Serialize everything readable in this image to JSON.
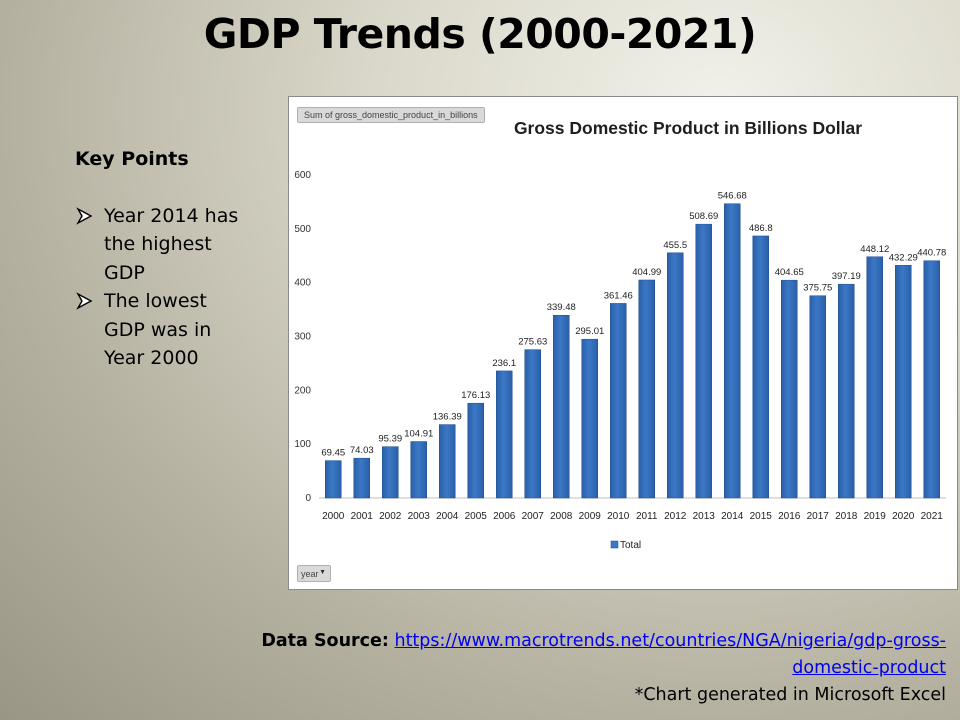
{
  "slide": {
    "title": "GDP Trends (2000-2021)",
    "key_points_heading": "Key Points",
    "key_points": [
      "Year 2014 has the highest GDP",
      "The lowest GDP was in Year 2000"
    ],
    "source_label": "Data Source:",
    "source_url": "https://www.macrotrends.net/countries/NGA/nigeria/gdp-gross-domestic-product",
    "note": "*Chart generated in Microsoft Excel"
  },
  "pivot": {
    "field_tag": "Sum of gross_domestic_product_in_billions",
    "filter_label": "year"
  },
  "chart_data": {
    "type": "bar",
    "title": "Gross Domestic Product in Billions Dollar",
    "xlabel": "",
    "ylabel": "",
    "categories": [
      "2000",
      "2001",
      "2002",
      "2003",
      "2004",
      "2005",
      "2006",
      "2007",
      "2008",
      "2009",
      "2010",
      "2011",
      "2012",
      "2013",
      "2014",
      "2015",
      "2016",
      "2017",
      "2018",
      "2019",
      "2020",
      "2021"
    ],
    "series": [
      {
        "name": "Total",
        "values": [
          69.45,
          74.03,
          95.39,
          104.91,
          136.39,
          176.13,
          236.1,
          275.63,
          339.48,
          295.01,
          361.46,
          404.99,
          455.5,
          508.69,
          546.68,
          486.8,
          404.65,
          375.75,
          397.19,
          448.12,
          432.29,
          440.78
        ],
        "data_labels": [
          "69.45",
          "74.03",
          "95.39",
          "104.91",
          "136.39",
          "176.13",
          "236.1",
          "275.63",
          "339.48",
          "295.01",
          "361.46",
          "404.99",
          "455.5",
          "508.69",
          "546.68",
          "486.8",
          "404.65",
          "375.75",
          "397.19",
          "448.12",
          "432.29",
          "440.78"
        ]
      }
    ],
    "ylim": [
      0,
      600
    ],
    "yticks": [
      0,
      100,
      200,
      300,
      400,
      500,
      600
    ],
    "grid": false,
    "legend": "bottom",
    "bar_color": "#3b78c6"
  }
}
